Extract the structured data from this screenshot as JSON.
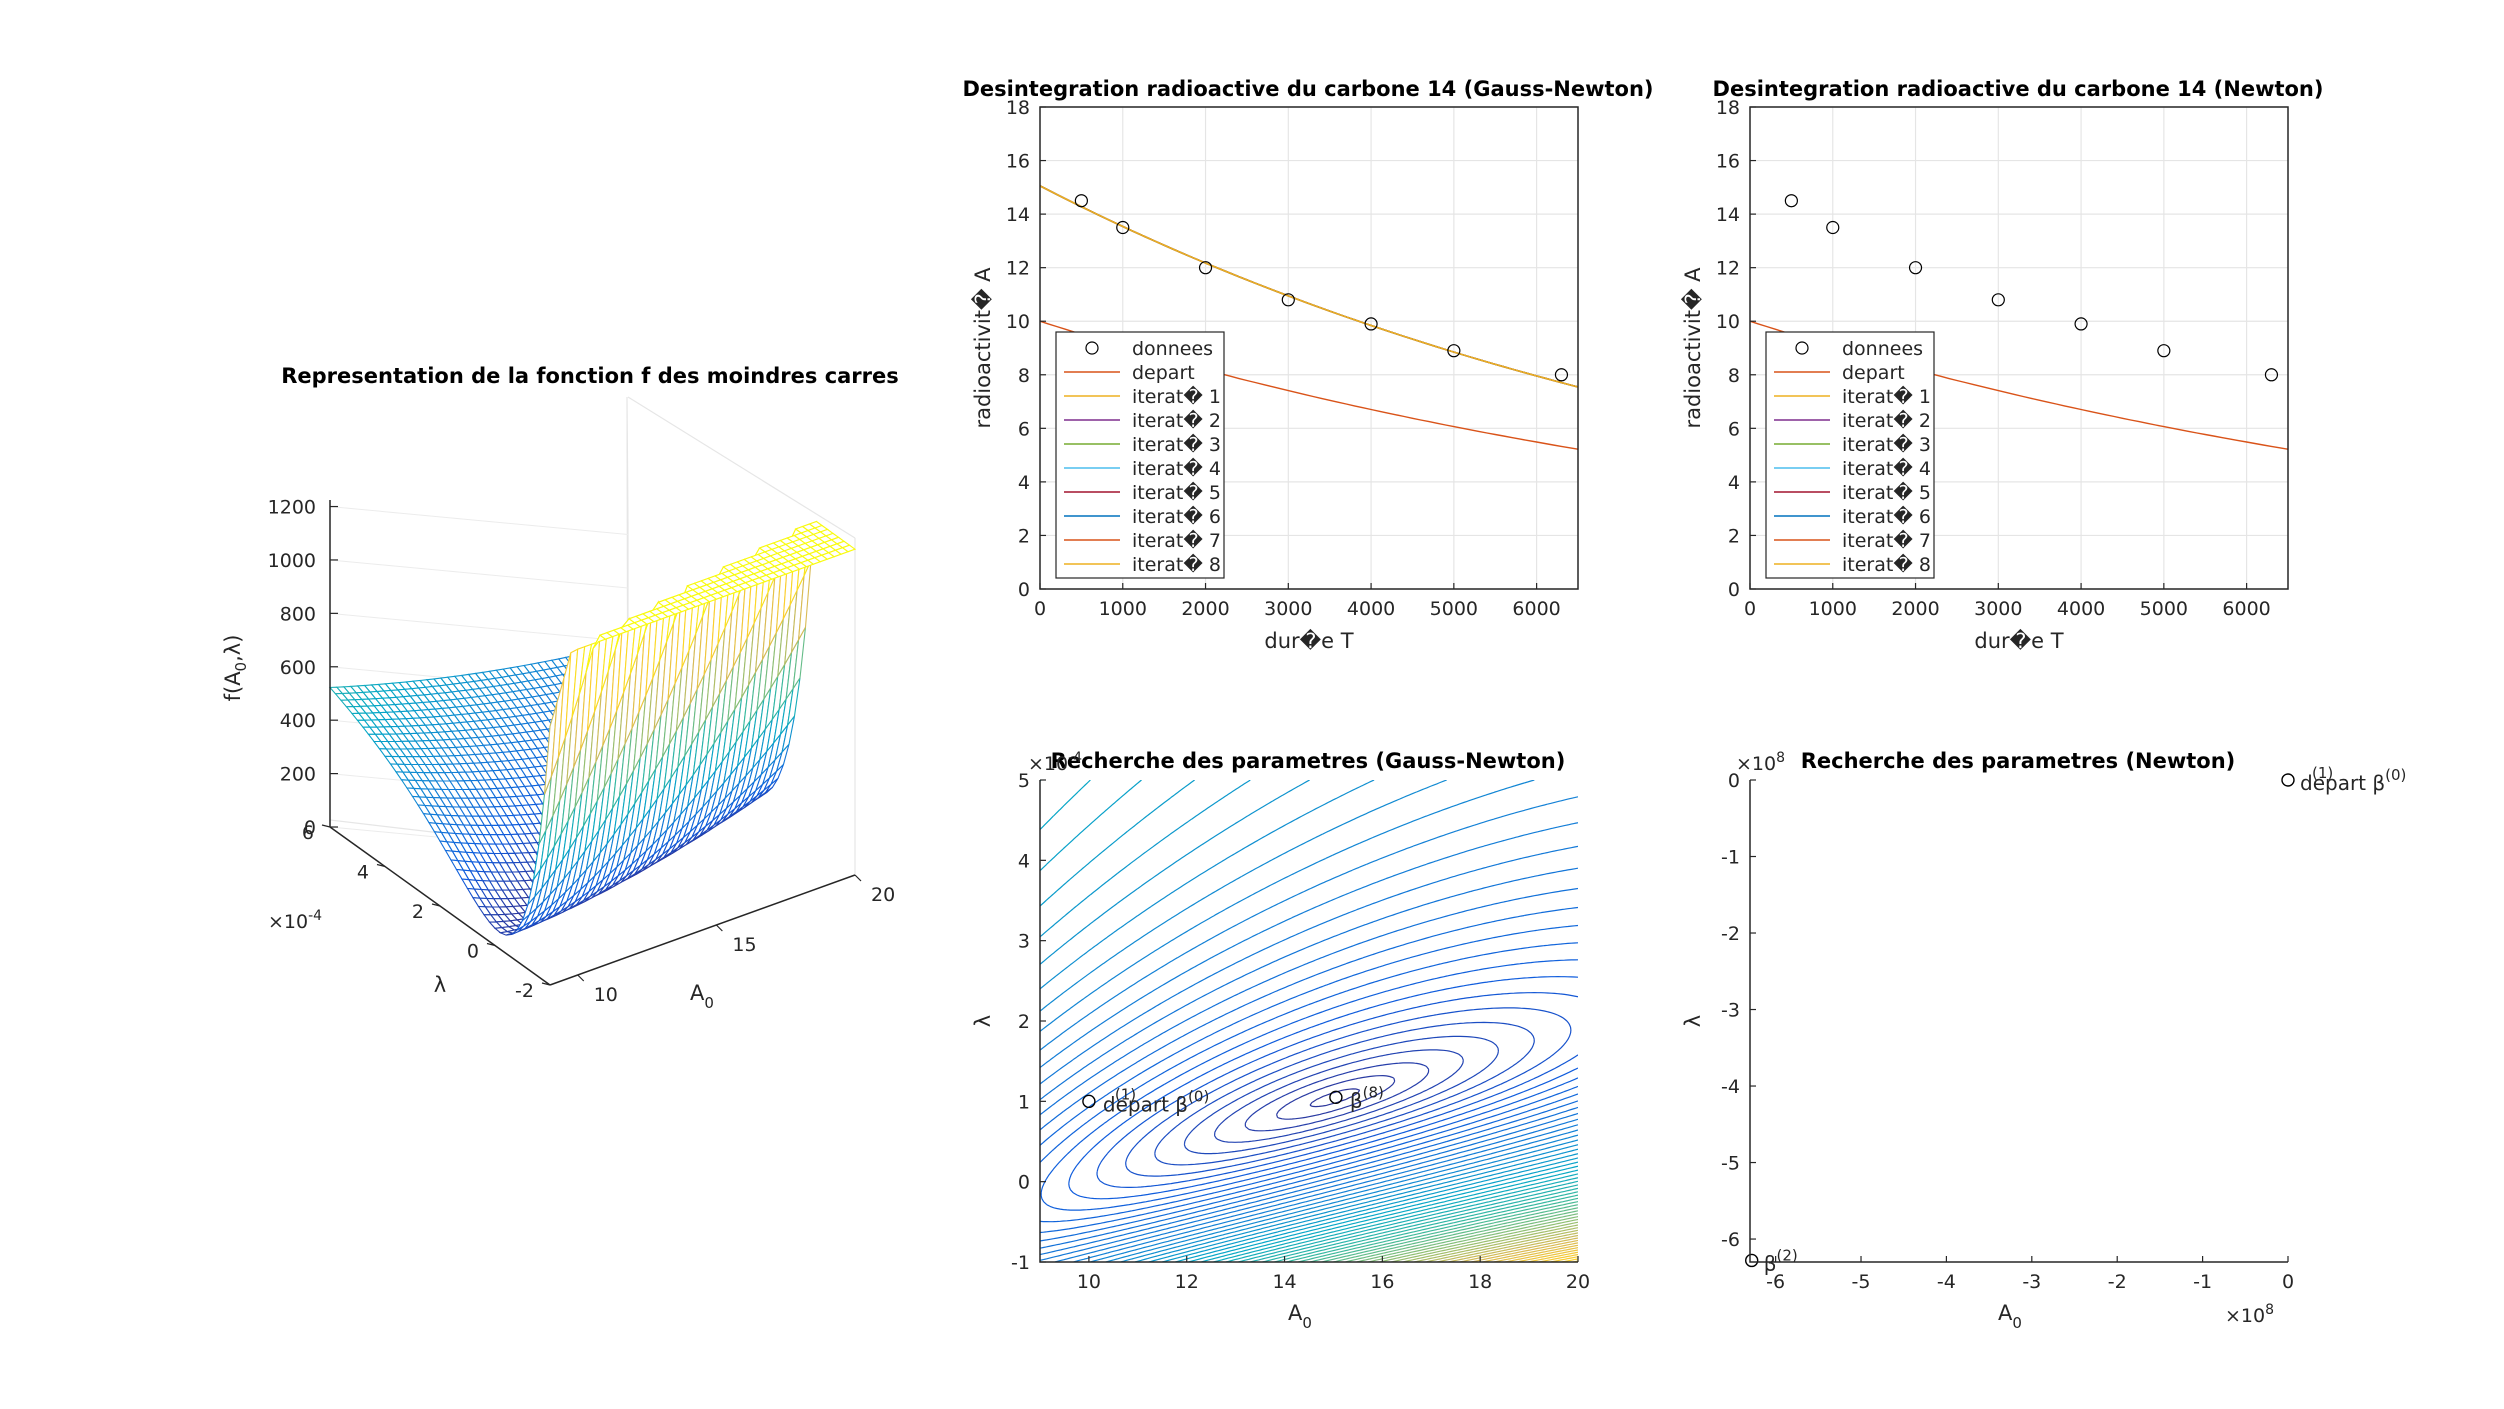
{
  "chart_data": [
    {
      "type": "surface",
      "title": "Representation de la fonction f des moindres carres",
      "xlabel": "A",
      "xlabel_sub": "0",
      "ylabel": "λ",
      "zlabel": "f(A",
      "zlabel_sub": "0",
      "zlabel_tail": ",λ)",
      "xlim": [
        9,
        20
      ],
      "ylim": [
        -0.0002,
        0.0006
      ],
      "zlim": [
        0,
        1200
      ],
      "xticks": [
        "10",
        "15",
        "20"
      ],
      "yticks": [
        "-2",
        "0",
        "2",
        "4",
        "6"
      ],
      "yexponent": "×10",
      "yexponent_power": "-4",
      "zticks": [
        "0",
        "200",
        "400",
        "600",
        "800",
        "1000",
        "1200"
      ]
    },
    {
      "type": "scatter+line",
      "title": "Desintegration radioactive du carbone 14 (Gauss-Newton)",
      "xlabel": "dur�e T",
      "ylabel": "radioactivit� A",
      "xlim": [
        0,
        6500
      ],
      "ylim": [
        0,
        18
      ],
      "xticks": [
        "0",
        "1000",
        "2000",
        "3000",
        "4000",
        "5000",
        "6000"
      ],
      "yticks": [
        "0",
        "2",
        "4",
        "6",
        "8",
        "10",
        "12",
        "14",
        "16",
        "18"
      ],
      "data_points": {
        "x": [
          500,
          1000,
          2000,
          3000,
          4000,
          5000,
          6300
        ],
        "y": [
          14.5,
          13.5,
          12.0,
          10.8,
          9.9,
          8.9,
          8.0
        ]
      },
      "series": [
        {
          "name": "depart",
          "A0": 10,
          "lambda": 0.0001,
          "color": "#D95319"
        },
        {
          "name": "iterat� 1",
          "A0": 15.05,
          "lambda": 0.0001063,
          "color": "#EDB120"
        },
        {
          "name": "iterat� 2",
          "A0": 15.06,
          "lambda": 0.0001063,
          "color": "#7E2F8E"
        },
        {
          "name": "iterat� 3",
          "A0": 15.06,
          "lambda": 0.0001063,
          "color": "#77AC30"
        },
        {
          "name": "iterat� 4",
          "A0": 15.06,
          "lambda": 0.0001063,
          "color": "#4DBEEE"
        },
        {
          "name": "iterat� 5",
          "A0": 15.06,
          "lambda": 0.0001063,
          "color": "#A2142F"
        },
        {
          "name": "iterat� 6",
          "A0": 15.06,
          "lambda": 0.0001063,
          "color": "#0072BD"
        },
        {
          "name": "iterat� 7",
          "A0": 15.06,
          "lambda": 0.0001063,
          "color": "#D95319"
        },
        {
          "name": "iterat� 8",
          "A0": 15.06,
          "lambda": 0.0001063,
          "color": "#EDB120"
        }
      ],
      "legend_first": "donnees",
      "legend_position": "southwest"
    },
    {
      "type": "scatter+line",
      "title": "Desintegration radioactive du carbone 14 (Newton)",
      "xlabel": "dur�e T",
      "ylabel": "radioactivit� A",
      "xlim": [
        0,
        6500
      ],
      "ylim": [
        0,
        18
      ],
      "xticks": [
        "0",
        "1000",
        "2000",
        "3000",
        "4000",
        "5000",
        "6000"
      ],
      "yticks": [
        "0",
        "2",
        "4",
        "6",
        "8",
        "10",
        "12",
        "14",
        "16",
        "18"
      ],
      "data_points": {
        "x": [
          500,
          1000,
          2000,
          3000,
          4000,
          5000,
          6300
        ],
        "y": [
          14.5,
          13.5,
          12.0,
          10.8,
          9.9,
          8.9,
          8.0
        ]
      },
      "series": [
        {
          "name": "depart",
          "A0": 10,
          "lambda": 0.0001,
          "color": "#D95319"
        },
        {
          "name": "iterat� 1",
          "color": "#EDB120"
        },
        {
          "name": "iterat� 2",
          "color": "#7E2F8E"
        },
        {
          "name": "iterat� 3",
          "color": "#77AC30"
        },
        {
          "name": "iterat� 4",
          "color": "#4DBEEE"
        },
        {
          "name": "iterat� 5",
          "color": "#A2142F"
        },
        {
          "name": "iterat� 6",
          "color": "#0072BD"
        },
        {
          "name": "iterat� 7",
          "color": "#D95319"
        },
        {
          "name": "iterat� 8",
          "color": "#EDB120"
        }
      ],
      "legend_first": "donnees",
      "legend_position": "southwest"
    },
    {
      "type": "contour",
      "title": "Recherche des parametres (Gauss-Newton)",
      "xlabel": "A",
      "xlabel_sub": "0",
      "ylabel": "λ",
      "xlim": [
        9,
        20
      ],
      "ylim": [
        -1,
        5
      ],
      "yexponent": "×10",
      "yexponent_power": "-4",
      "xticks": [
        "10",
        "12",
        "14",
        "16",
        "18",
        "20"
      ],
      "yticks": [
        "-1",
        "0",
        "1",
        "2",
        "3",
        "4",
        "5"
      ],
      "points": [
        {
          "A0": 10,
          "lambda": 1.0,
          "label": "depart β",
          "sup": "(0)",
          "sup2": "(1)"
        },
        {
          "A0": 15.05,
          "lambda": 1.05,
          "label": "β",
          "sup": "(8)"
        }
      ]
    },
    {
      "type": "scatter",
      "title": "Recherche des parametres (Newton)",
      "xlabel": "A",
      "xlabel_sub": "0",
      "ylabel": "λ",
      "xlim": [
        -6.3,
        0
      ],
      "ylim": [
        -6.3,
        0
      ],
      "xexponent": "×10",
      "xexponent_power": "8",
      "yexponent": "×10",
      "yexponent_power": "8",
      "xticks": [
        "-6",
        "-5",
        "-4",
        "-3",
        "-2",
        "-1",
        "0"
      ],
      "yticks": [
        "-6",
        "-5",
        "-4",
        "-3",
        "-2",
        "-1",
        "0"
      ],
      "points": [
        {
          "A0": 0,
          "lambda": 0,
          "label": "depart β",
          "sup": "(0)",
          "sup2": "(1)"
        },
        {
          "A0": -6.28,
          "lambda": -6.28,
          "label": "β",
          "sup": "(2)"
        }
      ]
    }
  ]
}
